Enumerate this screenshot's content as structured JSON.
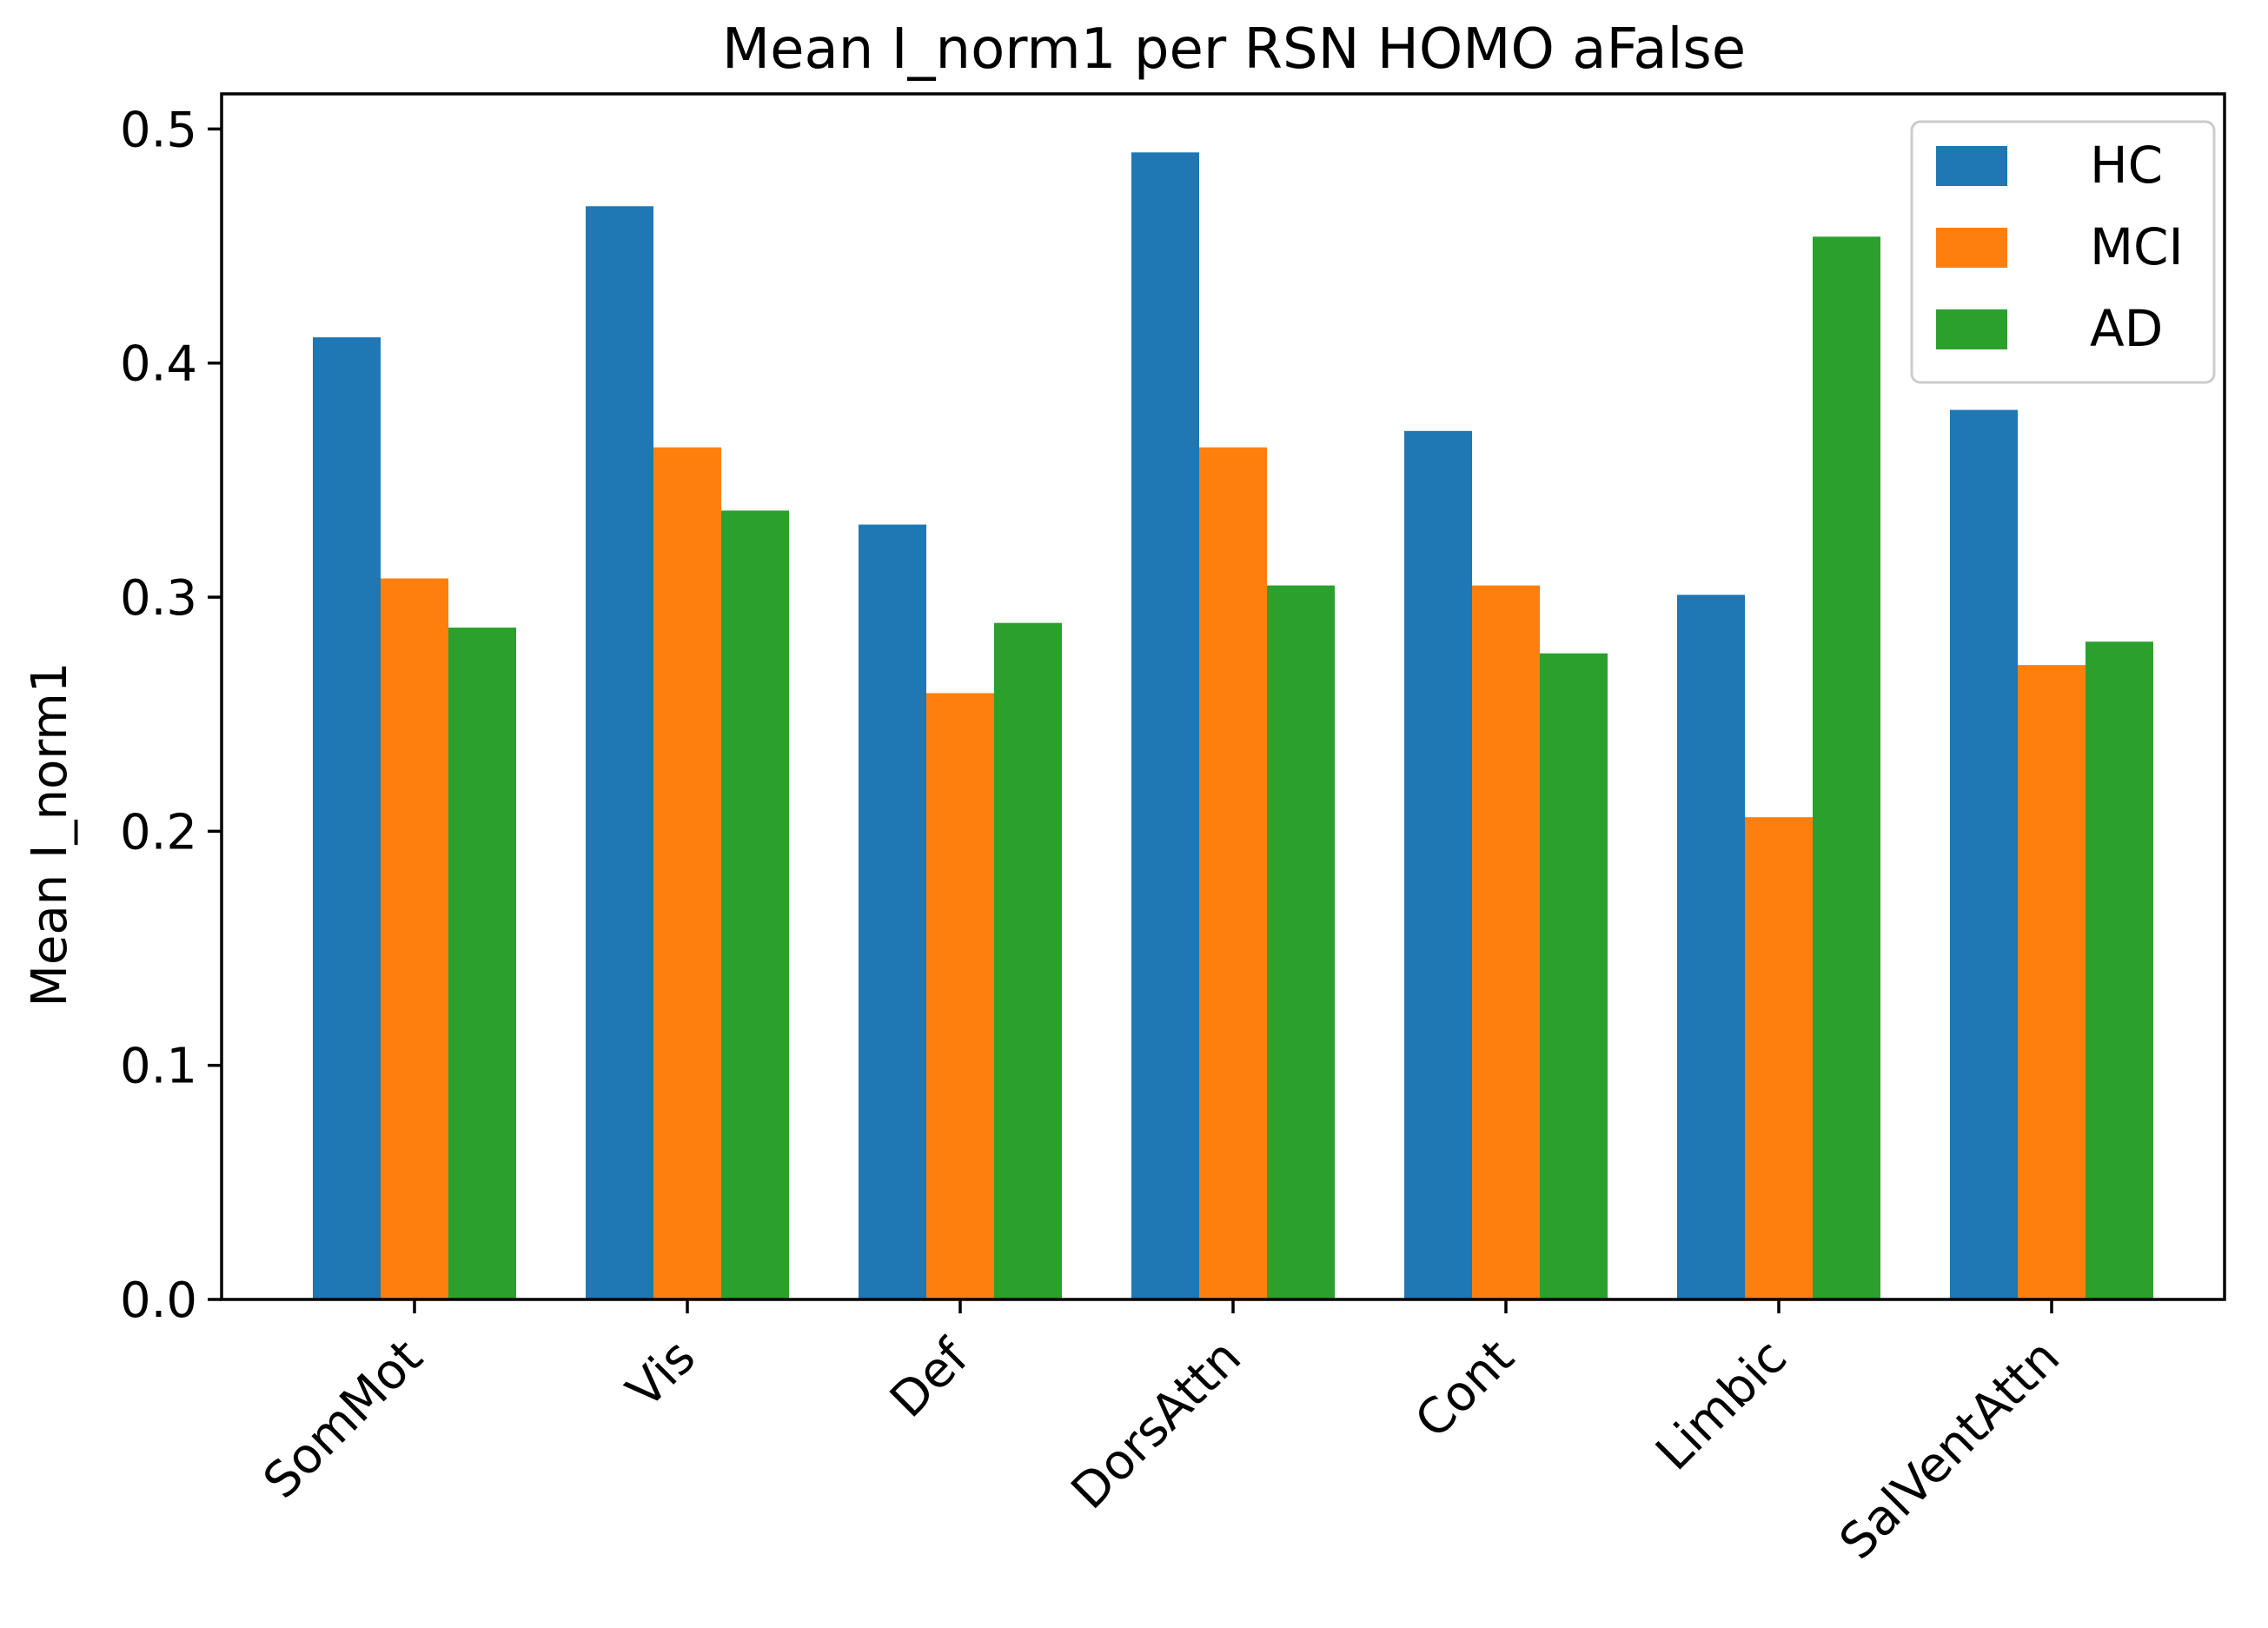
{
  "chart_data": {
    "type": "bar",
    "title": "Mean I_norm1 per RSN HOMO aFalse",
    "xlabel": "",
    "ylabel": "Mean I_norm1",
    "ylim": [
      0,
      0.515
    ],
    "yticks": [
      "0.0",
      "0.1",
      "0.2",
      "0.3",
      "0.4",
      "0.5"
    ],
    "categories": [
      "SomMot",
      "Vis",
      "Def",
      "DorsAttn",
      "Cont",
      "Limbic",
      "SalVentAttn"
    ],
    "series": [
      {
        "name": "HC",
        "color": "#1f77b4",
        "values": [
          0.411,
          0.467,
          0.331,
          0.49,
          0.371,
          0.301,
          0.38
        ]
      },
      {
        "name": "MCI",
        "color": "#ff7f0e",
        "values": [
          0.308,
          0.364,
          0.259,
          0.364,
          0.305,
          0.206,
          0.271
        ]
      },
      {
        "name": "AD",
        "color": "#2ca02c",
        "values": [
          0.287,
          0.337,
          0.289,
          0.305,
          0.276,
          0.454,
          0.281
        ]
      }
    ],
    "legend_position": "top-right",
    "grid": false
  }
}
